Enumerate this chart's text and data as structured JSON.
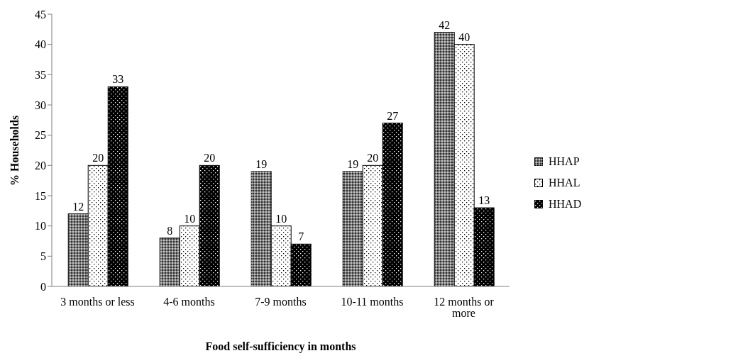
{
  "chart_data": {
    "type": "bar",
    "xlabel": "Food self-sufficiency in months",
    "ylabel": "% Households",
    "categories": [
      "3 months or less",
      "4-6 months",
      "7-9 months",
      "10-11 months",
      "12 months or more"
    ],
    "series": [
      {
        "name": "HHAP",
        "color": "#808080",
        "values": [
          12,
          8,
          19,
          19,
          42
        ]
      },
      {
        "name": "HHAL",
        "color": "#ffffff",
        "values": [
          20,
          10,
          10,
          20,
          40
        ]
      },
      {
        "name": "HHAD",
        "color": "#000000",
        "values": [
          33,
          20,
          7,
          27,
          13
        ]
      }
    ],
    "ylim": [
      0,
      45
    ],
    "yticks": [
      0,
      5,
      10,
      15,
      20,
      25,
      30,
      35,
      40,
      45
    ],
    "grid": false,
    "legend": "right",
    "data_labels": true
  }
}
